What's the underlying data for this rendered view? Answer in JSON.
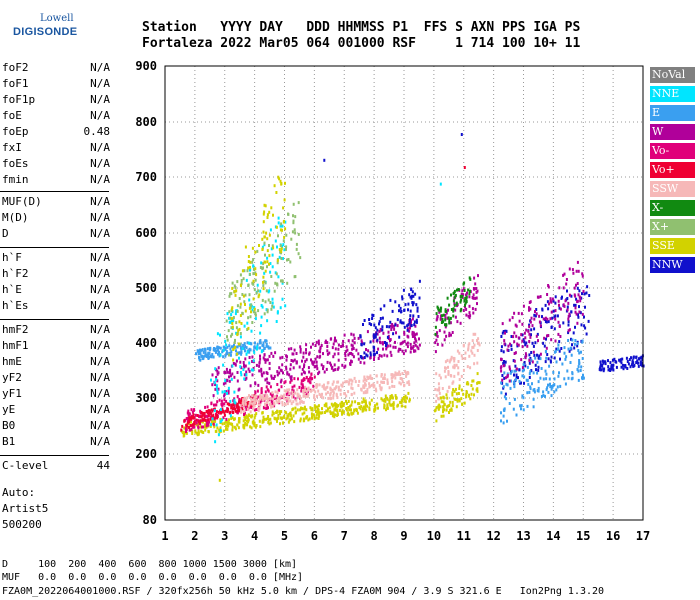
{
  "logo": {
    "top": "Lowell",
    "main": "DIGISONDE"
  },
  "header": {
    "line1": "Station   YYYY DAY   DDD HHMMSS P1  FFS S AXN PPS IGA PS",
    "line2": "Fortaleza 2022 Mar05 064 001000 RSF     1 714 100 10+ 11"
  },
  "params": [
    {
      "name": "foF2",
      "value": "N/A"
    },
    {
      "name": "foF1",
      "value": "N/A"
    },
    {
      "name": "foF1p",
      "value": "N/A"
    },
    {
      "name": "foE",
      "value": "N/A"
    },
    {
      "name": "foEp",
      "value": "0.48"
    },
    {
      "name": "fxI",
      "value": "N/A"
    },
    {
      "name": "foEs",
      "value": "N/A"
    },
    {
      "name": "fmin",
      "value": "N/A"
    },
    {
      "name": "MUF(D)",
      "value": "N/A"
    },
    {
      "name": "M(D)",
      "value": "N/A"
    },
    {
      "name": "D",
      "value": "N/A"
    },
    {
      "name": "h`F",
      "value": "N/A"
    },
    {
      "name": "h`F2",
      "value": "N/A"
    },
    {
      "name": "h`E",
      "value": "N/A"
    },
    {
      "name": "h`Es",
      "value": "N/A"
    },
    {
      "name": "hmF2",
      "value": "N/A"
    },
    {
      "name": "hmF1",
      "value": "N/A"
    },
    {
      "name": "hmE",
      "value": "N/A"
    },
    {
      "name": "yF2",
      "value": "N/A"
    },
    {
      "name": "yF1",
      "value": "N/A"
    },
    {
      "name": "yE",
      "value": "N/A"
    },
    {
      "name": "B0",
      "value": "N/A"
    },
    {
      "name": "B1",
      "value": "N/A"
    },
    {
      "name": "C-level",
      "value": "44"
    }
  ],
  "auto": {
    "label": "Auto:",
    "artist": "Artist5",
    "version": "500200"
  },
  "bottom": {
    "d_line": "D     100  200  400  600  800 1000 1500 3000 [km]",
    "muf_line": "MUF   0.0  0.0  0.0  0.0  0.0  0.0  0.0  0.0 [MHz]",
    "file_line": "FZA0M_2022064001000.RSF / 320fx256h 50 kHz 5.0 km / DPS-4 FZA0M 904 / 3.9 S 321.6 E   Ion2Png 1.3.20"
  },
  "legend": [
    {
      "label": "NoVal",
      "color": "#808080"
    },
    {
      "label": "NNE",
      "color": "#00e5ff"
    },
    {
      "label": "E",
      "color": "#3a9ff0"
    },
    {
      "label": "W",
      "color": "#b0009a"
    },
    {
      "label": "Vo-",
      "color": "#e0007a"
    },
    {
      "label": "Vo+",
      "color": "#ef0033"
    },
    {
      "label": "SSW",
      "color": "#f6b8b8"
    },
    {
      "label": "X-",
      "color": "#118a11"
    },
    {
      "label": "X+",
      "color": "#90c070"
    },
    {
      "label": "SSE",
      "color": "#d2d200"
    },
    {
      "label": "NNW",
      "color": "#1010cc"
    }
  ],
  "chart_data": {
    "type": "scatter",
    "title": "",
    "xlabel": "",
    "ylabel": "",
    "xlim": [
      1,
      17
    ],
    "ylim": [
      80,
      900
    ],
    "x_ticks": [
      "1",
      "2",
      "3",
      "4",
      "5",
      "6",
      "7",
      "8",
      "9",
      "10",
      "11",
      "12",
      "13",
      "14",
      "15",
      "16",
      "17"
    ],
    "y_ticks": [
      "80",
      "200",
      "300",
      "400",
      "500",
      "600",
      "700",
      "800",
      "900"
    ],
    "y_tick_values": [
      80,
      200,
      300,
      400,
      500,
      600,
      700,
      800,
      900
    ],
    "grid": "dotted",
    "legend_placement": "right",
    "traces": [
      {
        "series": "SSE",
        "x": [
          1.5,
          9.2
        ],
        "h": [
          245,
          300
        ],
        "spread": 25
      },
      {
        "series": "Vo-",
        "x": [
          1.6,
          6.0
        ],
        "h": [
          260,
          330
        ],
        "spread": 40
      },
      {
        "series": "Vo+",
        "x": [
          1.5,
          4.0
        ],
        "h": [
          255,
          300
        ],
        "spread": 20
      },
      {
        "series": "SSW",
        "x": [
          3.5,
          9.2
        ],
        "h": [
          290,
          340
        ],
        "spread": 30
      },
      {
        "series": "W",
        "x": [
          2.5,
          9.5
        ],
        "h": [
          330,
          420
        ],
        "spread": 60
      },
      {
        "series": "E",
        "x": [
          2.0,
          4.5
        ],
        "h": [
          380,
          400
        ],
        "spread": 20
      },
      {
        "series": "NNE",
        "x": [
          2.5,
          5.0
        ],
        "h": [
          300,
          560
        ],
        "spread": 200
      },
      {
        "series": "X+",
        "x": [
          3.0,
          5.5
        ],
        "h": [
          430,
          600
        ],
        "spread": 140
      },
      {
        "series": "SSE",
        "x": [
          3.2,
          5.0
        ],
        "h": [
          440,
          660
        ],
        "spread": 160
      },
      {
        "series": "NNW",
        "x": [
          7.5,
          9.5
        ],
        "h": [
          400,
          480
        ],
        "spread": 80
      },
      {
        "series": "SSE",
        "x": [
          10.0,
          11.5
        ],
        "h": [
          280,
          330
        ],
        "spread": 40
      },
      {
        "series": "SSW",
        "x": [
          10.0,
          11.5
        ],
        "h": [
          320,
          400
        ],
        "spread": 60
      },
      {
        "series": "W",
        "x": [
          10.0,
          11.5
        ],
        "h": [
          420,
          500
        ],
        "spread": 70
      },
      {
        "series": "X-",
        "x": [
          10.0,
          11.2
        ],
        "h": [
          440,
          500
        ],
        "spread": 50
      },
      {
        "series": "NNW",
        "x": [
          12.2,
          15.2
        ],
        "h": [
          360,
          470
        ],
        "spread": 120
      },
      {
        "series": "E",
        "x": [
          12.2,
          15.0
        ],
        "h": [
          300,
          380
        ],
        "spread": 90
      },
      {
        "series": "W",
        "x": [
          12.2,
          15.0
        ],
        "h": [
          380,
          500
        ],
        "spread": 120
      },
      {
        "series": "NNW",
        "x": [
          15.5,
          17.0
        ],
        "h": [
          360,
          370
        ],
        "spread": 20
      }
    ],
    "isolated_points": [
      {
        "series": "NNW",
        "x": 10.9,
        "h": 780
      },
      {
        "series": "Vo+",
        "x": 11.0,
        "h": 720
      },
      {
        "series": "NNE",
        "x": 10.2,
        "h": 690
      },
      {
        "series": "NNW",
        "x": 6.3,
        "h": 733
      },
      {
        "series": "SSE",
        "x": 2.8,
        "h": 155
      }
    ]
  }
}
